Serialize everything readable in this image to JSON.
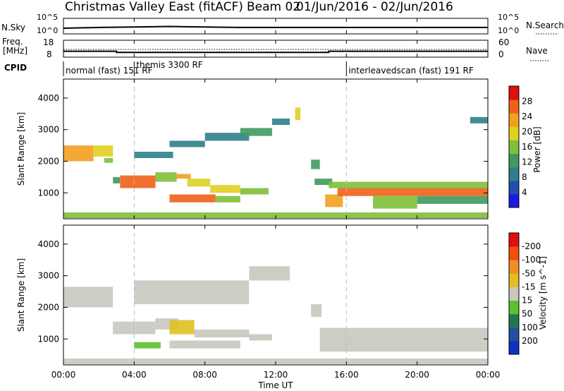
{
  "title": "Christmas Valley East (fitACF)",
  "beam": "Beam 02",
  "date_range": "01/Jun/2016 - 02/Jun/2016",
  "nsky_label": "N.Sky",
  "nsearch_label": "N.Search",
  "freq_label_1": "Freq.",
  "freq_label_2": "[MHz]",
  "nave_label": "Nave",
  "cpid_label": "CPID",
  "nsky_ticks": [
    "10^5",
    "10^0"
  ],
  "nsearch_ticks": [
    "10^5",
    "10^0"
  ],
  "freq_ticks": [
    "18",
    "8"
  ],
  "nave_ticks": [
    "60",
    "0"
  ],
  "cpid_segments": [
    {
      "start": 0,
      "end": 4,
      "label": "normal (fast) 151 RF"
    },
    {
      "start": 4,
      "end": 16,
      "label": "themis 3300 RF"
    },
    {
      "start": 16,
      "end": 24,
      "label": "interleavedscan (fast) 191 RF"
    }
  ],
  "xaxis_label": "Time UT",
  "x_tick_labels": [
    "00:00",
    "04:00",
    "08:00",
    "12:00",
    "16:00",
    "20:00",
    "00:00"
  ],
  "y_tick_labels": [
    "1000",
    "2000",
    "3000",
    "4000"
  ],
  "ylabel": "Slant Range [km]",
  "power_colorbar": {
    "label": "Power [dB]",
    "ticks": [
      "4",
      "8",
      "12",
      "16",
      "20",
      "24",
      "28"
    ],
    "colors": [
      "#1a1ae6",
      "#1f4fb0",
      "#2e7f8a",
      "#3f9a5e",
      "#7fbf3a",
      "#e0d020",
      "#f2a020",
      "#f06018",
      "#e01010"
    ]
  },
  "velocity_colorbar": {
    "label": "Velocity [m s^-1]",
    "ticks": [
      "200",
      "100",
      "50",
      "15",
      "-15",
      "-50",
      "-100",
      "-200"
    ],
    "colors": [
      "#1030c0",
      "#2050a0",
      "#207850",
      "#5cc030",
      "#c8c8c0",
      "#e0c020",
      "#f09020",
      "#f05010",
      "#e01010"
    ]
  },
  "chart_data": [
    {
      "type": "line",
      "name": "N.Sky",
      "x": [
        0,
        2,
        4,
        6,
        8,
        10,
        12,
        14,
        16,
        18,
        20,
        22,
        24
      ],
      "y": [
        1,
        2,
        3,
        5,
        3,
        2,
        2,
        2,
        2,
        2,
        2,
        2,
        2
      ],
      "xlim": [
        0,
        24
      ]
    },
    {
      "type": "line",
      "name": "Freq.",
      "x": [
        0,
        3,
        3,
        15,
        15,
        24
      ],
      "y": [
        11.5,
        11.5,
        10.8,
        10.8,
        11.5,
        11.5
      ],
      "ylim": [
        8,
        18
      ],
      "xlim": [
        0,
        24
      ]
    },
    {
      "type": "heatmap",
      "name": "Power",
      "xlabel": "Time UT",
      "ylabel": "Slant Range [km]",
      "xlim": [
        0,
        24
      ],
      "ylim": [
        180,
        4600
      ],
      "clim": [
        0,
        30
      ],
      "bands": [
        {
          "t0": 0.0,
          "t1": 1.7,
          "r0": 2000,
          "r1": 2500,
          "p": 22
        },
        {
          "t0": 1.7,
          "t1": 2.8,
          "r0": 2150,
          "r1": 2500,
          "p": 18
        },
        {
          "t0": 2.3,
          "t1": 2.8,
          "r0": 1950,
          "r1": 2100,
          "p": 14
        },
        {
          "t0": 2.8,
          "t1": 3.2,
          "r0": 1300,
          "r1": 1500,
          "p": 10
        },
        {
          "t0": 3.2,
          "t1": 5.2,
          "r0": 1150,
          "r1": 1550,
          "p": 26
        },
        {
          "t0": 5.2,
          "t1": 6.4,
          "r0": 1350,
          "r1": 1650,
          "p": 16
        },
        {
          "t0": 6.4,
          "t1": 7.2,
          "r0": 1450,
          "r1": 1600,
          "p": 22
        },
        {
          "t0": 7.0,
          "t1": 8.3,
          "r0": 1200,
          "r1": 1450,
          "p": 20
        },
        {
          "t0": 8.3,
          "t1": 10.0,
          "r0": 1000,
          "r1": 1250,
          "p": 18
        },
        {
          "t0": 10.0,
          "t1": 11.6,
          "r0": 950,
          "r1": 1150,
          "p": 16
        },
        {
          "t0": 6.0,
          "t1": 8.6,
          "r0": 700,
          "r1": 950,
          "p": 28
        },
        {
          "t0": 8.6,
          "t1": 10.0,
          "r0": 700,
          "r1": 900,
          "p": 14
        },
        {
          "t0": 4.0,
          "t1": 6.2,
          "r0": 2100,
          "r1": 2300,
          "p": 8
        },
        {
          "t0": 6.0,
          "t1": 8.0,
          "r0": 2450,
          "r1": 2650,
          "p": 8
        },
        {
          "t0": 8.0,
          "t1": 10.5,
          "r0": 2650,
          "r1": 2900,
          "p": 8
        },
        {
          "t0": 10.0,
          "t1": 11.8,
          "r0": 2800,
          "r1": 3050,
          "p": 10
        },
        {
          "t0": 11.8,
          "t1": 12.8,
          "r0": 3150,
          "r1": 3350,
          "p": 8
        },
        {
          "t0": 13.1,
          "t1": 13.4,
          "r0": 3300,
          "r1": 3700,
          "p": 20
        },
        {
          "t0": 14.0,
          "t1": 14.5,
          "r0": 1750,
          "r1": 2050,
          "p": 12
        },
        {
          "t0": 14.2,
          "t1": 15.2,
          "r0": 1250,
          "r1": 1450,
          "p": 12
        },
        {
          "t0": 14.8,
          "t1": 15.8,
          "r0": 550,
          "r1": 950,
          "p": 24
        },
        {
          "t0": 15.0,
          "t1": 24.0,
          "r0": 1150,
          "r1": 1350,
          "p": 14
        },
        {
          "t0": 15.5,
          "t1": 24.0,
          "r0": 900,
          "r1": 1150,
          "p": 26
        },
        {
          "t0": 17.5,
          "t1": 20.0,
          "r0": 500,
          "r1": 900,
          "p": 14
        },
        {
          "t0": 20.0,
          "t1": 24.0,
          "r0": 650,
          "r1": 900,
          "p": 12
        },
        {
          "t0": 23.0,
          "t1": 24.0,
          "r0": 3200,
          "r1": 3400,
          "p": 8
        },
        {
          "t0": 0.0,
          "t1": 24.0,
          "r0": 200,
          "r1": 380,
          "p": 14
        }
      ]
    },
    {
      "type": "heatmap",
      "name": "Velocity",
      "xlabel": "Time UT",
      "ylabel": "Slant Range [km]",
      "xlim": [
        0,
        24
      ],
      "ylim": [
        180,
        4600
      ],
      "clim": [
        -250,
        250
      ],
      "bands": [
        {
          "t0": 0.0,
          "t1": 2.8,
          "r0": 2000,
          "r1": 2650,
          "v": 0
        },
        {
          "t0": 2.8,
          "t1": 5.2,
          "r0": 1150,
          "r1": 1550,
          "v": 0
        },
        {
          "t0": 5.2,
          "t1": 6.5,
          "r0": 1300,
          "r1": 1650,
          "v": 0
        },
        {
          "t0": 6.0,
          "t1": 7.4,
          "r0": 1150,
          "r1": 1600,
          "v": 40
        },
        {
          "t0": 7.4,
          "t1": 10.5,
          "r0": 1050,
          "r1": 1300,
          "v": 10
        },
        {
          "t0": 10.5,
          "t1": 11.8,
          "r0": 950,
          "r1": 1150,
          "v": 0
        },
        {
          "t0": 6.0,
          "t1": 10.0,
          "r0": 700,
          "r1": 950,
          "v": 0
        },
        {
          "t0": 4.0,
          "t1": 5.5,
          "r0": 700,
          "r1": 900,
          "v": -60
        },
        {
          "t0": 4.0,
          "t1": 10.5,
          "r0": 2100,
          "r1": 2850,
          "v": 0
        },
        {
          "t0": 10.5,
          "t1": 12.8,
          "r0": 2850,
          "r1": 3300,
          "v": 0
        },
        {
          "t0": 14.0,
          "t1": 14.6,
          "r0": 1700,
          "r1": 2100,
          "v": 0
        },
        {
          "t0": 14.5,
          "t1": 24.0,
          "r0": 600,
          "r1": 1350,
          "v": 0
        },
        {
          "t0": 0.0,
          "t1": 24.0,
          "r0": 200,
          "r1": 380,
          "v": -30
        }
      ]
    }
  ]
}
